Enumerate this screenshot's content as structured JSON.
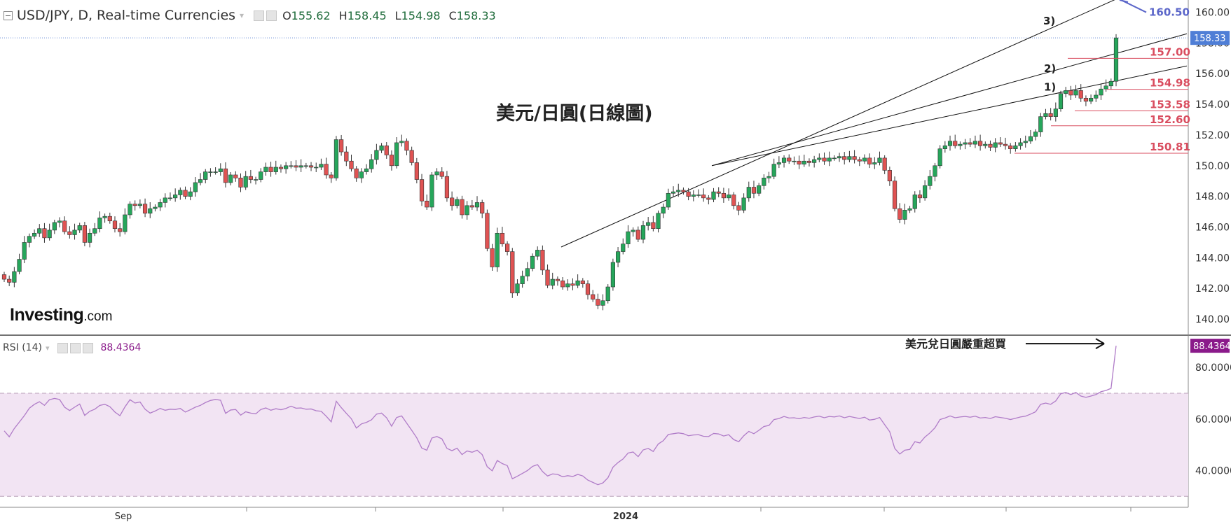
{
  "header": {
    "symbol": "USD/JPY, D, Real-time Currencies",
    "o_label": "O",
    "o_value": "155.62",
    "h_label": "H",
    "h_value": "158.45",
    "l_label": "L",
    "l_value": "154.98",
    "c_label": "C",
    "c_value": "158.33"
  },
  "rsi_header": {
    "label": "RSI (14)",
    "value": "88.4364"
  },
  "logo": {
    "main": "Investing",
    "suffix": ".com"
  },
  "chart_data": {
    "type": "candlestick",
    "title": "美元/日圓(日線圖)",
    "price_ylim": [
      139.0,
      160.8
    ],
    "price_ticks": [
      "160.00",
      "158.00",
      "156.00",
      "154.00",
      "152.00",
      "150.00",
      "148.00",
      "146.00",
      "144.00",
      "142.00",
      "140.00"
    ],
    "last_price": "158.33",
    "target_label": "160.50",
    "levels": [
      {
        "label": "157.00",
        "value": 157.0
      },
      {
        "label": "154.98",
        "value": 154.98
      },
      {
        "label": "153.58",
        "value": 153.58
      },
      {
        "label": "152.60",
        "value": 152.6
      },
      {
        "label": "150.81",
        "value": 150.81
      }
    ],
    "trendline_labels": [
      "1)",
      "2)",
      "3)"
    ],
    "x_labels": [
      "Sep",
      "2024"
    ],
    "closes": [
      142.6,
      142.4,
      143.1,
      143.9,
      145.0,
      145.4,
      145.6,
      145.9,
      145.3,
      145.8,
      146.3,
      146.4,
      145.7,
      145.5,
      145.8,
      146.1,
      145.0,
      145.6,
      145.9,
      146.6,
      146.7,
      146.4,
      145.9,
      145.7,
      146.8,
      147.5,
      147.4,
      147.5,
      146.9,
      147.2,
      147.3,
      147.6,
      147.9,
      147.9,
      148.1,
      148.4,
      148.0,
      148.3,
      148.9,
      149.1,
      149.6,
      149.6,
      149.6,
      149.8,
      148.9,
      149.4,
      149.2,
      148.6,
      149.3,
      149.1,
      149.1,
      149.6,
      149.9,
      149.6,
      149.9,
      149.8,
      150.0,
      150.0,
      149.9,
      150.0,
      150.0,
      149.9,
      149.9,
      150.1,
      149.4,
      149.2,
      151.7,
      150.9,
      150.3,
      149.8,
      149.2,
      149.6,
      149.8,
      150.4,
      151.0,
      151.3,
      150.7,
      150.0,
      151.5,
      151.6,
      151.0,
      150.2,
      149.1,
      147.7,
      147.3,
      149.4,
      149.6,
      149.3,
      147.9,
      147.4,
      147.8,
      146.8,
      147.4,
      147.3,
      147.6,
      146.9,
      144.6,
      143.4,
      145.6,
      144.9,
      144.4,
      141.7,
      142.3,
      142.8,
      143.3,
      144.1,
      144.5,
      143.2,
      142.2,
      142.6,
      142.5,
      142.1,
      142.3,
      142.2,
      142.5,
      142.3,
      141.6,
      141.3,
      140.9,
      141.2,
      142.1,
      143.7,
      144.4,
      144.9,
      145.7,
      145.8,
      145.2,
      146.1,
      146.3,
      145.9,
      146.9,
      147.3,
      148.2,
      148.3,
      148.4,
      148.3,
      148.0,
      148.1,
      148.1,
      147.9,
      147.8,
      148.3,
      148.2,
      147.9,
      148.1,
      147.4,
      147.1,
      147.9,
      148.6,
      148.2,
      148.7,
      149.2,
      149.3,
      150.1,
      150.2,
      150.5,
      150.3,
      150.3,
      150.1,
      150.3,
      150.2,
      150.4,
      150.5,
      150.3,
      150.5,
      150.5,
      150.6,
      150.4,
      150.6,
      150.4,
      150.3,
      150.5,
      150.1,
      150.2,
      150.5,
      149.7,
      149.0,
      147.2,
      146.5,
      147.1,
      147.2,
      148.1,
      147.9,
      148.7,
      149.3,
      150.0,
      151.1,
      151.3,
      151.6,
      151.3,
      151.4,
      151.5,
      151.4,
      151.6,
      151.3,
      151.4,
      151.2,
      151.5,
      151.4,
      151.3,
      151.1,
      151.3,
      151.5,
      151.6,
      151.9,
      152.2,
      153.2,
      153.4,
      153.2,
      153.7,
      154.7,
      154.9,
      154.6,
      154.9,
      154.4,
      154.2,
      154.4,
      154.6,
      155.0,
      155.2,
      155.5,
      158.33
    ],
    "rsi": {
      "value_label": "88.4364",
      "ylim": [
        26,
        92
      ],
      "ticks": [
        "80.0000",
        "60.0000",
        "40.0000"
      ],
      "band": [
        30,
        70
      ],
      "values": [
        55.4,
        53.1,
        56.3,
        58.8,
        61.3,
        64.2,
        65.7,
        66.7,
        65.3,
        67.5,
        68.0,
        67.6,
        64.6,
        63.3,
        64.6,
        65.8,
        61.4,
        63.0,
        63.8,
        65.3,
        65.7,
        64.8,
        62.7,
        61.3,
        64.7,
        67.5,
        66.2,
        66.6,
        63.8,
        62.3,
        63.1,
        64.1,
        63.4,
        63.8,
        63.7,
        64.1,
        62.7,
        63.6,
        64.6,
        65.3,
        66.4,
        67.2,
        67.6,
        67.3,
        62.2,
        63.5,
        63.7,
        61.5,
        62.8,
        62.3,
        62.0,
        63.7,
        64.3,
        63.4,
        64.0,
        63.6,
        64.1,
        65.0,
        64.2,
        64.3,
        63.8,
        63.9,
        63.2,
        63.0,
        61.1,
        58.9,
        66.9,
        64.4,
        62.2,
        60.1,
        56.5,
        58.1,
        58.7,
        59.7,
        61.9,
        62.3,
        60.5,
        57.2,
        60.6,
        61.2,
        58.4,
        55.6,
        52.7,
        48.7,
        47.9,
        52.6,
        53.2,
        52.3,
        48.6,
        47.7,
        48.7,
        46.2,
        47.6,
        47.1,
        47.9,
        46.2,
        41.5,
        39.9,
        43.9,
        42.7,
        41.9,
        36.8,
        37.8,
        38.9,
        40.0,
        41.6,
        42.3,
        39.6,
        37.9,
        38.7,
        38.5,
        37.6,
        38.0,
        37.7,
        38.5,
        37.9,
        36.3,
        35.4,
        34.5,
        35.2,
        37.2,
        41.3,
        43.1,
        44.5,
        46.8,
        47.2,
        45.4,
        48.0,
        48.6,
        47.4,
        50.3,
        51.6,
        54.0,
        54.3,
        54.6,
        54.3,
        53.5,
        53.8,
        53.9,
        53.3,
        53.2,
        54.4,
        54.2,
        53.4,
        53.9,
        52.0,
        51.2,
        53.5,
        55.2,
        54.3,
        55.6,
        57.1,
        57.5,
        59.8,
        60.2,
        61.0,
        60.4,
        60.5,
        60.1,
        60.6,
        60.3,
        60.8,
        61.1,
        60.5,
        61.0,
        60.8,
        61.2,
        60.5,
        61.0,
        60.6,
        60.2,
        60.7,
        59.6,
        59.9,
        60.6,
        57.8,
        55.1,
        48.6,
        46.4,
        47.9,
        48.2,
        51.2,
        50.7,
        53.0,
        54.6,
        56.6,
        59.8,
        60.4,
        61.2,
        60.5,
        60.8,
        61.0,
        60.7,
        61.1,
        60.4,
        60.6,
        60.2,
        60.9,
        60.6,
        60.3,
        59.8,
        60.3,
        60.8,
        61.1,
        61.9,
        62.8,
        65.7,
        66.2,
        65.7,
        67.0,
        69.8,
        70.3,
        69.5,
        70.3,
        68.9,
        68.4,
        68.9,
        69.5,
        70.6,
        71.1,
        71.9,
        88.4364
      ]
    }
  },
  "annotations": {
    "overbought": "美元兌日圓嚴重超買"
  },
  "colors": {
    "up": "#26a65b",
    "down": "#e05353",
    "level": "#d94d5f",
    "trendline_blue": "#5b66c9",
    "rsi_line": "#b07cc8",
    "rsi_band": "#f2e4f3",
    "rsi_value": "#8a1a8a",
    "price_tag": "#4f7ed6"
  }
}
